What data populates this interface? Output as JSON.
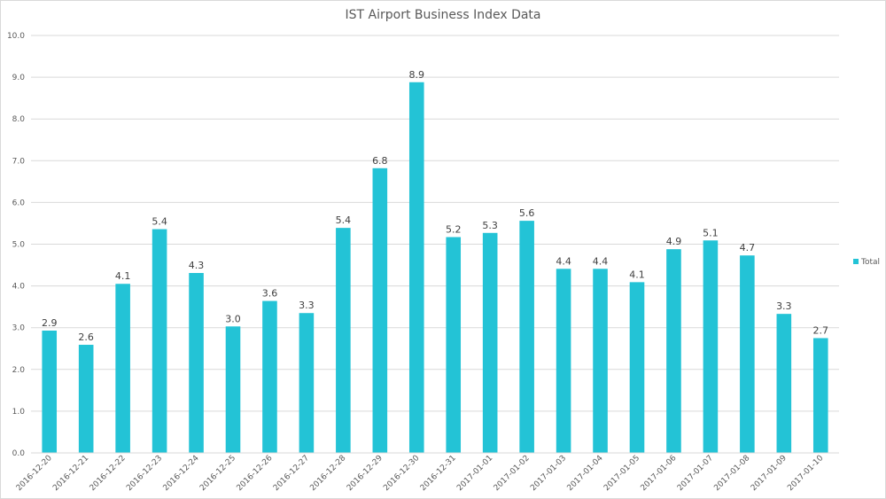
{
  "chart_data": {
    "type": "bar",
    "title": "IST Airport Business Index Data",
    "xlabel": "",
    "ylabel": "",
    "categories": [
      "2016-12-20",
      "2016-12-21",
      "2016-12-22",
      "2016-12-23",
      "2016-12-24",
      "2016-12-25",
      "2016-12-26",
      "2016-12-27",
      "2016-12-28",
      "2016-12-29",
      "2016-12-30",
      "2016-12-31",
      "2017-01-01",
      "2017-01-02",
      "2017-01-03",
      "2017-01-04",
      "2017-01-05",
      "2017-01-06",
      "2017-01-07",
      "2017-01-08",
      "2017-01-09",
      "2017-01-10"
    ],
    "series": [
      {
        "name": "Total",
        "values": [
          2.93,
          2.59,
          4.05,
          5.36,
          4.31,
          3.03,
          3.64,
          3.35,
          5.39,
          6.82,
          8.88,
          5.17,
          5.27,
          5.56,
          4.41,
          4.41,
          4.09,
          4.88,
          5.09,
          4.73,
          3.33,
          2.75
        ],
        "labels": [
          "2.9",
          "2.6",
          "4.1",
          "5.4",
          "4.3",
          "3.0",
          "3.6",
          "3.3",
          "5.4",
          "6.8",
          "8.9",
          "5.2",
          "5.3",
          "5.6",
          "4.4",
          "4.4",
          "4.1",
          "4.9",
          "5.1",
          "4.7",
          "3.3",
          "2.7"
        ],
        "color": "#23C3D6"
      }
    ],
    "ylim": [
      0,
      10
    ],
    "yticks": [
      "0.0",
      "1.0",
      "2.0",
      "3.0",
      "4.0",
      "5.0",
      "6.0",
      "7.0",
      "8.0",
      "9.0",
      "10.0"
    ],
    "grid": true,
    "legend_position": "right"
  }
}
